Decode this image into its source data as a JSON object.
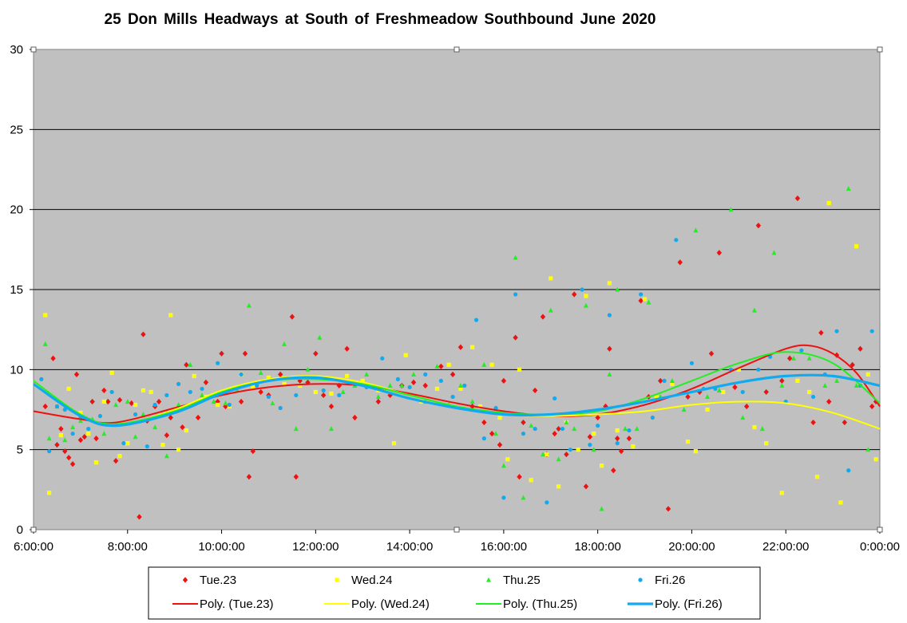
{
  "chart_data": {
    "type": "scatter",
    "title": "25 Don Mills Headways  at South  of Freshmeadow  Southbound  June 2020",
    "xlabel": "",
    "ylabel": "",
    "x_range": [
      "6:00:00",
      "0:00:00"
    ],
    "ylim": [
      0,
      30
    ],
    "x_ticks": [
      "6:00:00",
      "8:00:00",
      "10:00:00",
      "12:00:00",
      "14:00:00",
      "16:00:00",
      "18:00:00",
      "20:00:00",
      "22:00:00",
      "0:00:00"
    ],
    "y_ticks": [
      "0",
      "5",
      "10",
      "15",
      "20",
      "25",
      "30"
    ],
    "grid": "horizontal",
    "legend_position": "bottom",
    "series": [
      {
        "name": "Tue.23",
        "color": "#ee1111",
        "marker": "diamond",
        "x": [
          "6:15",
          "6:25",
          "6:30",
          "6:35",
          "6:40",
          "6:45",
          "6:50",
          "6:55",
          "7:00",
          "7:05",
          "7:15",
          "7:20",
          "7:30",
          "7:35",
          "7:45",
          "7:50",
          "8:05",
          "8:15",
          "8:20",
          "8:25",
          "8:35",
          "8:40",
          "8:50",
          "8:55",
          "9:10",
          "9:15",
          "9:30",
          "9:40",
          "9:55",
          "10:00",
          "10:05",
          "10:25",
          "10:30",
          "10:35",
          "10:40",
          "10:50",
          "11:00",
          "11:15",
          "11:30",
          "11:35",
          "11:40",
          "11:50",
          "12:00",
          "12:10",
          "12:20",
          "12:30",
          "12:40",
          "12:50",
          "13:05",
          "13:20",
          "13:35",
          "13:50",
          "14:05",
          "14:20",
          "14:40",
          "14:55",
          "15:05",
          "15:20",
          "15:35",
          "15:45",
          "15:55",
          "16:00",
          "16:15",
          "16:20",
          "16:25",
          "16:40",
          "16:50",
          "16:55",
          "17:05",
          "17:10",
          "17:20",
          "17:30",
          "17:45",
          "17:50",
          "18:00",
          "18:10",
          "18:15",
          "18:20",
          "18:25",
          "18:30",
          "18:40",
          "18:55",
          "19:05",
          "19:20",
          "19:30",
          "19:45",
          "19:55",
          "20:10",
          "20:25",
          "20:35",
          "20:55",
          "21:10",
          "21:25",
          "21:35",
          "21:55",
          "22:05",
          "22:15",
          "22:35",
          "22:45",
          "22:55",
          "23:05",
          "23:15",
          "23:25",
          "23:35",
          "23:50",
          "23:55"
        ],
        "y": [
          7.7,
          10.7,
          5.3,
          6.3,
          4.9,
          4.5,
          4.1,
          9.7,
          5.6,
          5.8,
          8.0,
          5.7,
          8.7,
          8.0,
          4.3,
          8.1,
          7.9,
          0.8,
          12.2,
          6.8,
          7.7,
          8.0,
          5.9,
          7.0,
          6.4,
          10.3,
          7.0,
          9.2,
          8.0,
          11.0,
          7.7,
          8.0,
          11.0,
          3.3,
          4.9,
          8.6,
          8.4,
          9.7,
          13.3,
          3.3,
          9.3,
          9.2,
          11.0,
          8.4,
          7.7,
          9.0,
          11.3,
          7.0,
          9.0,
          8.0,
          8.4,
          9.0,
          9.2,
          9.0,
          10.2,
          9.7,
          11.4,
          7.7,
          6.7,
          6.0,
          5.3,
          9.3,
          12.0,
          3.3,
          6.7,
          8.7,
          13.3,
          4.7,
          6.0,
          6.3,
          4.7,
          14.7,
          2.7,
          5.8,
          7.0,
          7.7,
          11.3,
          3.7,
          5.7,
          4.9,
          5.7,
          14.3,
          8.3,
          9.3,
          1.3,
          16.7,
          8.3,
          8.6,
          11.0,
          17.3,
          8.9,
          7.7,
          19.0,
          8.6,
          9.3,
          10.7,
          20.7,
          6.7,
          12.3,
          8.0,
          10.9,
          6.7,
          10.3,
          11.3,
          7.7,
          8.0
        ]
      },
      {
        "name": "Wed.24",
        "color": "#ffff00",
        "marker": "square",
        "x": [
          "6:15",
          "6:20",
          "6:35",
          "6:45",
          "7:00",
          "7:10",
          "7:20",
          "7:30",
          "7:40",
          "7:50",
          "8:00",
          "8:10",
          "8:20",
          "8:30",
          "8:45",
          "8:55",
          "9:05",
          "9:15",
          "9:25",
          "9:40",
          "9:55",
          "10:10",
          "10:25",
          "10:40",
          "11:00",
          "11:20",
          "11:40",
          "12:00",
          "12:20",
          "12:40",
          "13:00",
          "13:20",
          "13:40",
          "13:55",
          "14:15",
          "14:35",
          "14:50",
          "15:05",
          "15:20",
          "15:30",
          "15:45",
          "15:55",
          "16:05",
          "16:20",
          "16:35",
          "16:55",
          "17:00",
          "17:10",
          "17:20",
          "17:35",
          "17:45",
          "17:55",
          "18:05",
          "18:15",
          "18:25",
          "18:45",
          "19:00",
          "19:15",
          "19:35",
          "19:55",
          "20:05",
          "20:20",
          "20:40",
          "21:00",
          "21:20",
          "21:35",
          "21:55",
          "22:15",
          "22:30",
          "22:40",
          "22:55",
          "23:10",
          "23:30",
          "23:45",
          "23:55"
        ],
        "y": [
          13.4,
          2.3,
          5.9,
          8.8,
          7.3,
          6.0,
          4.2,
          8.0,
          9.8,
          4.6,
          5.4,
          7.8,
          8.7,
          8.6,
          5.3,
          13.4,
          5.0,
          6.2,
          9.6,
          8.3,
          7.8,
          7.7,
          9.7,
          8.9,
          9.5,
          9.1,
          9.0,
          8.6,
          8.5,
          9.6,
          9.3,
          8.7,
          5.4,
          10.9,
          8.0,
          8.8,
          10.3,
          8.8,
          11.4,
          7.7,
          10.3,
          7.0,
          4.4,
          10.0,
          3.1,
          4.7,
          15.7,
          2.7,
          6.7,
          5.0,
          14.6,
          6.0,
          4.0,
          15.4,
          6.2,
          5.2,
          14.4,
          8.3,
          9.1,
          5.5,
          4.9,
          7.5,
          8.6,
          10.0,
          6.4,
          5.4,
          2.3,
          9.3,
          8.6,
          3.3,
          20.4,
          1.7,
          17.7,
          9.7,
          4.4
        ]
      },
      {
        "name": "Thu.25",
        "color": "#22ee22",
        "marker": "triangle",
        "x": [
          "6:15",
          "6:20",
          "6:30",
          "6:40",
          "6:50",
          "7:00",
          "7:15",
          "7:30",
          "7:45",
          "8:00",
          "8:10",
          "8:20",
          "8:35",
          "8:50",
          "9:05",
          "9:20",
          "9:35",
          "9:50",
          "10:05",
          "10:20",
          "10:35",
          "10:50",
          "11:05",
          "11:20",
          "11:35",
          "11:50",
          "12:05",
          "12:20",
          "12:35",
          "12:50",
          "13:05",
          "13:20",
          "13:35",
          "13:50",
          "14:05",
          "14:20",
          "14:35",
          "14:50",
          "15:05",
          "15:20",
          "15:35",
          "15:50",
          "16:00",
          "16:15",
          "16:25",
          "16:35",
          "16:50",
          "17:00",
          "17:10",
          "17:20",
          "17:30",
          "17:45",
          "17:55",
          "18:05",
          "18:15",
          "18:25",
          "18:35",
          "18:50",
          "19:05",
          "19:20",
          "19:35",
          "19:50",
          "20:05",
          "20:20",
          "20:35",
          "20:50",
          "21:05",
          "21:20",
          "21:30",
          "21:45",
          "21:55",
          "22:10",
          "22:30",
          "22:50",
          "23:05",
          "23:20",
          "23:30",
          "23:45"
        ],
        "y": [
          11.6,
          5.7,
          7.7,
          5.6,
          6.4,
          6.8,
          6.9,
          6.0,
          7.8,
          8.0,
          5.8,
          7.2,
          6.4,
          4.6,
          7.8,
          10.3,
          8.4,
          8.0,
          7.9,
          8.7,
          14.0,
          9.8,
          7.9,
          11.6,
          6.3,
          10.0,
          12.0,
          6.3,
          8.6,
          9.0,
          9.7,
          8.3,
          9.0,
          9.0,
          9.7,
          8.0,
          10.2,
          7.8,
          9.0,
          8.0,
          10.3,
          6.0,
          4.0,
          17.0,
          2.0,
          6.5,
          4.7,
          13.7,
          4.4,
          6.7,
          6.3,
          14.0,
          5.0,
          1.3,
          9.7,
          15.0,
          6.3,
          6.3,
          14.2,
          8.3,
          9.3,
          7.5,
          18.7,
          8.3,
          8.7,
          20.0,
          7.0,
          13.7,
          6.3,
          17.3,
          9.0,
          10.7,
          10.7,
          9.0,
          9.3,
          21.3,
          9.0,
          5.0
        ]
      },
      {
        "name": "Fri.26",
        "color": "#11aaee",
        "marker": "circle",
        "x": [
          "6:10",
          "6:20",
          "6:30",
          "6:40",
          "6:50",
          "7:00",
          "7:10",
          "7:25",
          "7:40",
          "7:55",
          "8:10",
          "8:25",
          "8:35",
          "8:50",
          "9:05",
          "9:20",
          "9:35",
          "9:55",
          "10:10",
          "10:25",
          "10:45",
          "11:00",
          "11:15",
          "11:35",
          "11:50",
          "12:10",
          "12:30",
          "12:50",
          "13:05",
          "13:25",
          "13:45",
          "14:00",
          "14:20",
          "14:40",
          "14:55",
          "15:10",
          "15:25",
          "15:35",
          "15:50",
          "16:00",
          "16:15",
          "16:25",
          "16:40",
          "16:55",
          "17:05",
          "17:15",
          "17:25",
          "17:40",
          "17:50",
          "18:00",
          "18:15",
          "18:25",
          "18:40",
          "18:55",
          "19:10",
          "19:25",
          "19:40",
          "20:00",
          "20:15",
          "20:30",
          "20:50",
          "21:05",
          "21:25",
          "21:40",
          "22:00",
          "22:20",
          "22:35",
          "22:50",
          "23:05",
          "23:20",
          "23:35",
          "23:50"
        ],
        "y": [
          9.4,
          4.9,
          7.7,
          7.5,
          6.0,
          7.0,
          6.3,
          7.1,
          8.6,
          5.4,
          7.2,
          5.2,
          7.8,
          8.4,
          9.1,
          8.6,
          8.8,
          10.4,
          7.8,
          9.7,
          9.0,
          8.3,
          7.6,
          8.4,
          9.5,
          8.7,
          8.4,
          9.1,
          8.9,
          10.7,
          9.4,
          8.9,
          9.7,
          9.3,
          8.3,
          9.0,
          13.1,
          5.7,
          7.6,
          2.0,
          14.7,
          6.0,
          6.3,
          1.7,
          8.2,
          6.3,
          5.0,
          15.0,
          5.3,
          6.5,
          13.4,
          5.4,
          6.2,
          14.7,
          7.0,
          9.3,
          18.1,
          10.4,
          8.8,
          8.8,
          10.0,
          8.6,
          10.0,
          10.8,
          8.0,
          11.2,
          8.3,
          9.7,
          12.4,
          3.7,
          9.0,
          12.4
        ]
      }
    ],
    "trendlines": [
      {
        "name": "Poly. (Tue.23)",
        "color": "#ee1111",
        "x": [
          "6:00",
          "7:00",
          "7:45",
          "9:00",
          "10:00",
          "11:00",
          "12:00",
          "13:00",
          "14:00",
          "15:00",
          "16:00",
          "17:00",
          "18:00",
          "19:00",
          "20:00",
          "21:00",
          "22:00",
          "22:30",
          "23:00",
          "23:30",
          "0:00"
        ],
        "y": [
          7.4,
          6.9,
          6.7,
          7.6,
          8.4,
          8.9,
          9.1,
          9.0,
          8.5,
          7.9,
          7.4,
          7.1,
          7.2,
          7.8,
          8.8,
          10.1,
          11.3,
          11.5,
          11.0,
          9.8,
          7.7
        ]
      },
      {
        "name": "Poly. (Wed.24)",
        "color": "#ffff00",
        "x": [
          "6:00",
          "7:00",
          "7:45",
          "9:00",
          "10:00",
          "11:00",
          "12:00",
          "13:00",
          "14:00",
          "15:00",
          "16:00",
          "17:00",
          "18:00",
          "19:00",
          "20:00",
          "21:00",
          "22:00",
          "23:00",
          "0:00"
        ],
        "y": [
          9.3,
          7.2,
          6.5,
          7.5,
          8.7,
          9.4,
          9.6,
          9.2,
          8.4,
          7.7,
          7.2,
          7.1,
          7.2,
          7.4,
          7.8,
          8.0,
          7.9,
          7.3,
          6.3
        ]
      },
      {
        "name": "Poly. (Thu.25)",
        "color": "#22ee22",
        "x": [
          "6:00",
          "7:00",
          "7:45",
          "9:00",
          "10:00",
          "11:00",
          "12:00",
          "13:00",
          "14:00",
          "15:00",
          "16:00",
          "17:00",
          "18:00",
          "19:00",
          "20:00",
          "21:00",
          "22:00",
          "23:00",
          "0:00"
        ],
        "y": [
          9.3,
          7.2,
          6.6,
          7.4,
          8.6,
          9.3,
          9.4,
          9.1,
          8.4,
          7.7,
          7.3,
          7.2,
          7.4,
          8.2,
          9.3,
          10.4,
          11.1,
          10.4,
          7.9
        ]
      },
      {
        "name": "Poly. (Fri.26)",
        "color": "#11aaee",
        "x": [
          "6:00",
          "7:00",
          "7:45",
          "9:00",
          "10:00",
          "11:00",
          "12:00",
          "13:00",
          "14:00",
          "15:00",
          "16:00",
          "17:00",
          "18:00",
          "19:00",
          "20:00",
          "21:00",
          "22:00",
          "23:00",
          "0:00"
        ],
        "y": [
          9.1,
          7.1,
          6.5,
          7.3,
          8.5,
          9.3,
          9.5,
          9.0,
          8.2,
          7.6,
          7.2,
          7.2,
          7.5,
          8.0,
          8.6,
          9.2,
          9.6,
          9.6,
          9.0
        ]
      }
    ]
  }
}
